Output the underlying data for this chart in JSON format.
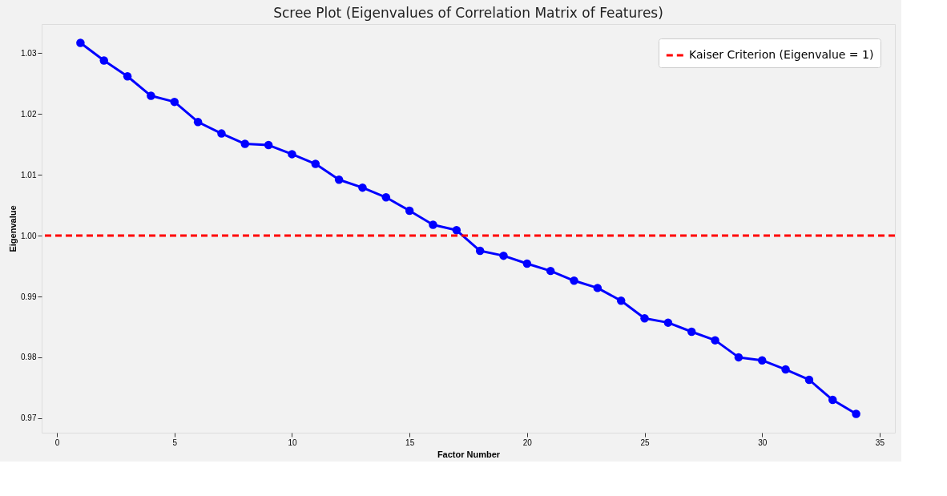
{
  "chart_data": {
    "type": "line",
    "title": "Scree Plot (Eigenvalues of Correlation Matrix of Features)",
    "xlabel": "Factor Number",
    "ylabel": "Eigenvalue",
    "x": [
      1,
      2,
      3,
      4,
      5,
      6,
      7,
      8,
      9,
      10,
      11,
      12,
      13,
      14,
      15,
      16,
      17,
      18,
      19,
      20,
      21,
      22,
      23,
      24,
      25,
      26,
      27,
      28,
      29,
      30,
      31,
      32,
      33,
      34
    ],
    "series": [
      {
        "color": "#0000ff",
        "values": [
          1.0317,
          1.0288,
          1.0262,
          1.023,
          1.022,
          1.0187,
          1.0168,
          1.0151,
          1.0149,
          1.0134,
          1.0118,
          1.0092,
          1.0079,
          1.0063,
          1.0041,
          1.0018,
          1.0009,
          0.9975,
          0.9967,
          0.9954,
          0.9942,
          0.9926,
          0.9914,
          0.9893,
          0.9864,
          0.9857,
          0.9842,
          0.9828,
          0.98,
          0.9795,
          0.978,
          0.9763,
          0.973,
          0.9707
        ]
      }
    ],
    "xlim": [
      -0.65,
      35.65
    ],
    "xticks": [
      0,
      5,
      10,
      15,
      20,
      25,
      30,
      35
    ],
    "ylim": [
      0.9676,
      1.0348
    ],
    "yticks": [
      {
        "value": 0.97,
        "label": "0.97"
      },
      {
        "value": 0.98,
        "label": "0.98"
      },
      {
        "value": 0.99,
        "label": "0.99"
      },
      {
        "value": 1.0,
        "label": "1.00"
      },
      {
        "value": 1.01,
        "label": "1.01"
      },
      {
        "value": 1.02,
        "label": "1.02"
      },
      {
        "value": 1.03,
        "label": "1.03"
      }
    ],
    "ref_lines": [
      {
        "axis": "y",
        "value": 1.0,
        "label": "Kaiser Criterion (Eigenvalue = 1)",
        "color": "#ff0000",
        "line_style": "dashed"
      }
    ],
    "legend": "top right",
    "grid": false,
    "marker": "circle",
    "line_style": "solid"
  }
}
